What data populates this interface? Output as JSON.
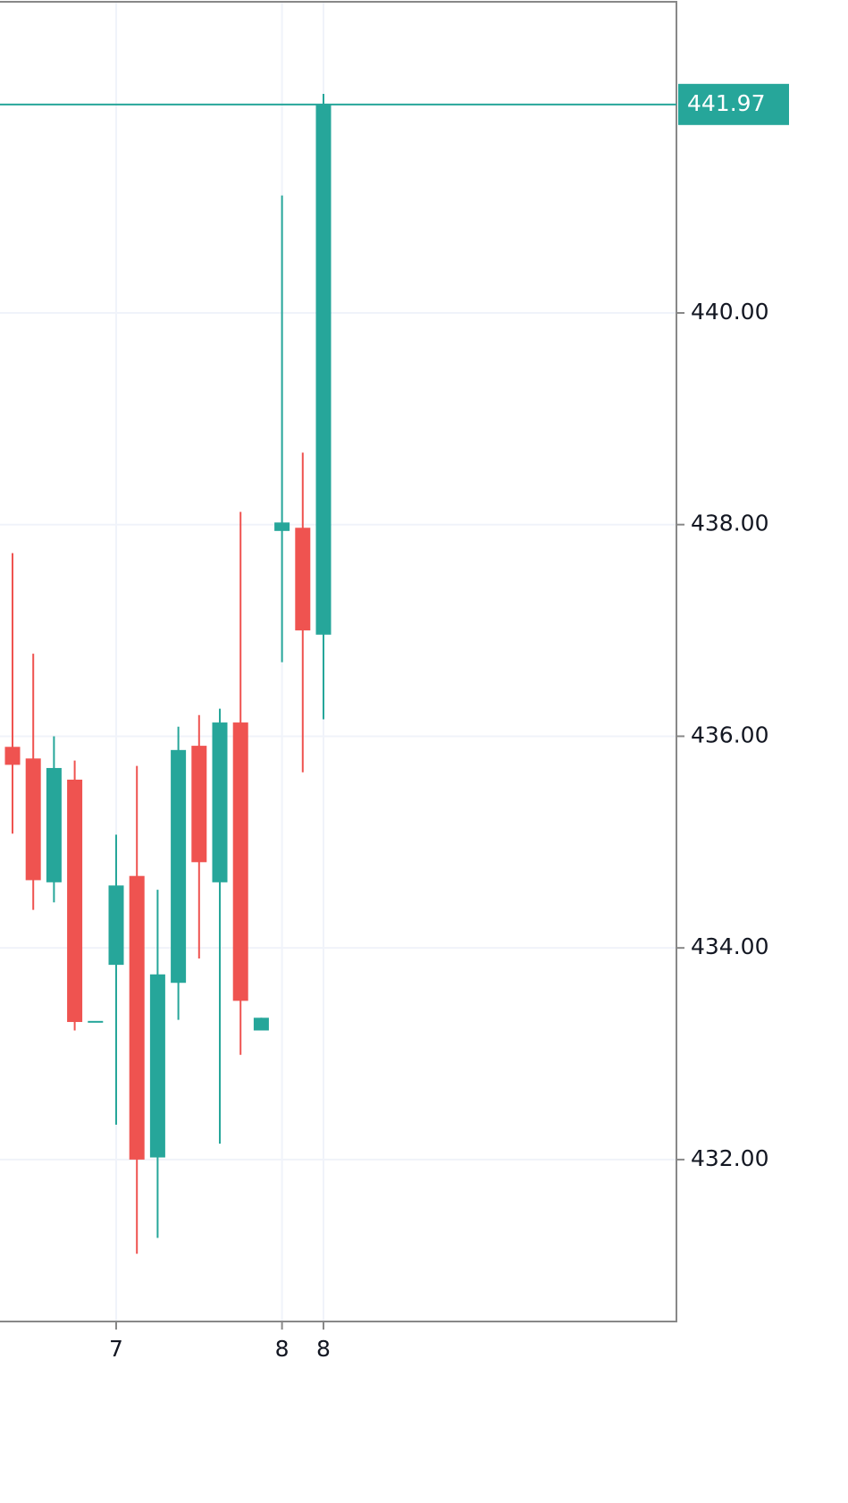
{
  "chart_data": {
    "type": "candlestick",
    "categories": [
      null,
      null,
      null,
      null,
      null,
      "7",
      null,
      null,
      null,
      null,
      null,
      null,
      null,
      "8",
      null,
      "8"
    ],
    "series": [
      {
        "open": [
          435.9,
          435.79,
          434.62,
          435.59,
          433.31,
          433.84,
          434.68,
          432.02,
          433.67,
          435.91,
          434.62,
          436.13,
          433.22,
          437.94,
          437.97,
          436.96
        ],
        "high": [
          437.73,
          436.78,
          436.0,
          435.77,
          433.31,
          435.07,
          435.72,
          434.55,
          436.09,
          436.2,
          436.26,
          438.12,
          433.34,
          441.11,
          438.68,
          442.07
        ],
        "low": [
          435.08,
          434.36,
          434.43,
          433.22,
          433.31,
          432.33,
          431.11,
          431.26,
          433.32,
          433.9,
          432.15,
          432.99,
          433.22,
          436.7,
          435.66,
          436.16
        ],
        "close": [
          435.73,
          434.64,
          435.7,
          433.3,
          433.31,
          434.59,
          432.0,
          433.75,
          435.87,
          434.81,
          436.13,
          433.5,
          433.34,
          438.02,
          437.0,
          441.97
        ]
      }
    ],
    "up_color": "#26a69a",
    "down_color": "#ef5350",
    "last_price": 441.97,
    "ylim": [
      430.47,
      442.94
    ],
    "yticks": [
      {
        "value": 432,
        "label": "432.00"
      },
      {
        "value": 434,
        "label": "434.00"
      },
      {
        "value": 436,
        "label": "436.00"
      },
      {
        "value": 438,
        "label": "438.00"
      },
      {
        "value": 440,
        "label": "440.00"
      }
    ],
    "grid": true
  }
}
